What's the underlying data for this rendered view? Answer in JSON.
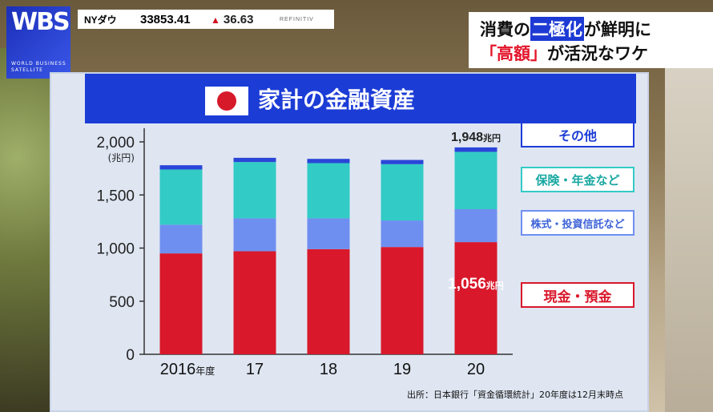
{
  "logo": {
    "mark": "WBS",
    "subtitle": "WORLD BUSINESS SATELLITE"
  },
  "ticker": {
    "index": "NYダウ",
    "value": "33853.41",
    "change_arrow": "▲",
    "change": "36.63",
    "source": "REFINITIV"
  },
  "headline": {
    "line1_pre": "消費の",
    "line1_box": "二極化",
    "line1_post": "が鮮明に",
    "line2_box": "「高額」",
    "line2_post": "が活況なワケ"
  },
  "panel": {
    "title": "家計の金融資産"
  },
  "source_note": "出所：日本銀行「資金循環統計」20年度は12月末時点",
  "chart_data": {
    "type": "bar",
    "stacked": true,
    "title": "家計の金融資産",
    "ylabel": "(兆円)",
    "ylim": [
      0,
      2000
    ],
    "yticks": [
      "0",
      "500",
      "1,000",
      "1,500",
      "2,000"
    ],
    "ytick_values": [
      0,
      500,
      1000,
      1500,
      2000
    ],
    "categories": [
      "2016",
      "17",
      "18",
      "19",
      "20"
    ],
    "first_category_suffix": "年度",
    "series": [
      {
        "name": "現金・預金",
        "color": "#d9182b",
        "values": [
          950,
          970,
          990,
          1010,
          1056
        ]
      },
      {
        "name": "株式・投資信託など",
        "color": "#6f8ff0",
        "values": [
          270,
          310,
          290,
          250,
          310
        ]
      },
      {
        "name": "保険・年金など",
        "color": "#33cbc5",
        "values": [
          520,
          530,
          520,
          530,
          540
        ]
      },
      {
        "name": "その他",
        "color": "#2a45d8",
        "values": [
          40,
          40,
          40,
          40,
          42
        ]
      }
    ],
    "data_labels": [
      {
        "category": "20",
        "text": "1,948",
        "unit": "兆円",
        "position": "top"
      },
      {
        "category": "20",
        "text": "1,056",
        "unit": "兆円",
        "position": "inside"
      }
    ],
    "legend_position": "right",
    "grid": false
  }
}
